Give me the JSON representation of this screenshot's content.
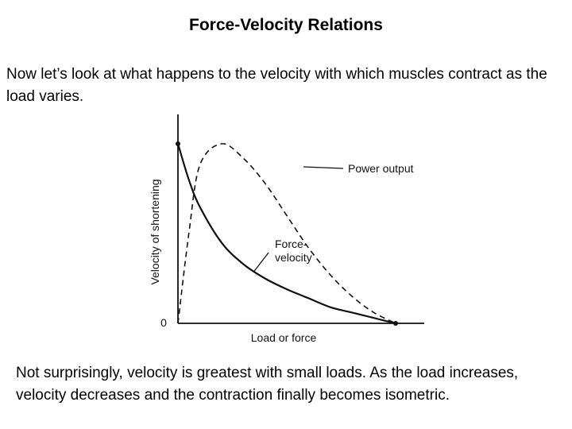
{
  "slide": {
    "title": "Force-Velocity Relations",
    "intro": "Now let’s look at what happens to the velocity with which muscles contract as the load varies.",
    "conclusion": "Not surprisingly, velocity is greatest with small loads.  As the load increases, velocity decreases and the contraction finally becomes isometric."
  },
  "chart_data": {
    "type": "line",
    "xlabel": "Load or force",
    "ylabel": "Velocity of shortening",
    "origin_label": "0",
    "grid": false,
    "series": [
      {
        "name": "Force-\nvelocity",
        "style": "solid",
        "x": [
          0,
          0.05,
          0.1,
          0.2,
          0.3,
          0.4,
          0.5,
          0.6,
          0.7,
          0.8,
          0.9,
          1.0
        ],
        "y": [
          1.0,
          0.8,
          0.65,
          0.45,
          0.33,
          0.25,
          0.19,
          0.14,
          0.09,
          0.06,
          0.03,
          0
        ]
      },
      {
        "name": "Power output",
        "style": "dashed",
        "x": [
          0,
          0.05,
          0.1,
          0.2,
          0.3,
          0.4,
          0.5,
          0.6,
          0.7,
          0.8,
          0.9,
          1.0
        ],
        "y": [
          0,
          0.5,
          0.88,
          1.0,
          0.92,
          0.78,
          0.6,
          0.42,
          0.27,
          0.15,
          0.06,
          0
        ]
      }
    ],
    "colors": {
      "curve": "#111111",
      "axis": "#111111"
    }
  }
}
